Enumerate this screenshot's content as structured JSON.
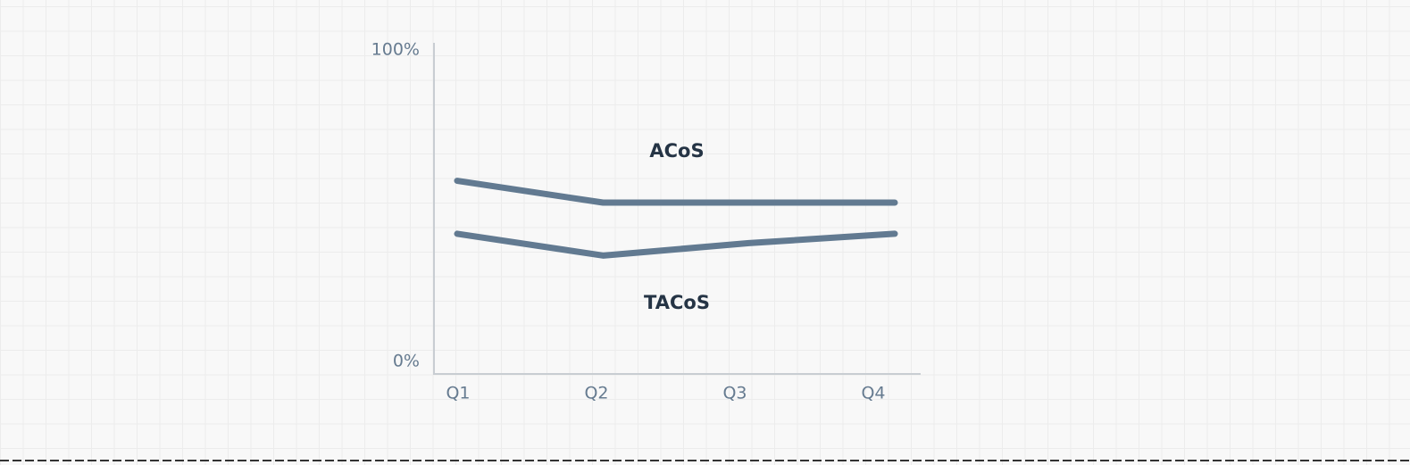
{
  "chart_data": {
    "type": "line",
    "categories": [
      "Q1",
      "Q2",
      "Q3",
      "Q4"
    ],
    "series": [
      {
        "name": "ACoS",
        "color": "#627a91",
        "values": [
          58,
          51,
          51,
          51
        ]
      },
      {
        "name": "TACoS",
        "color": "#627a91",
        "values": [
          41,
          34,
          38,
          41
        ]
      }
    ],
    "ylim": [
      0,
      100
    ],
    "yticks": [
      {
        "value": 0,
        "label": "0%"
      },
      {
        "value": 100,
        "label": "100%"
      }
    ]
  }
}
